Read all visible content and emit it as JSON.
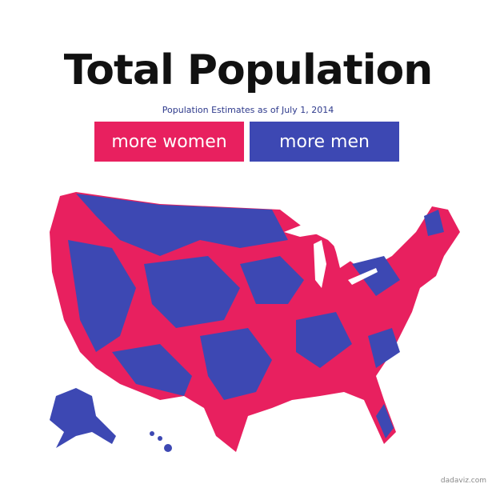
{
  "header": {
    "title": "Total Population",
    "subtitle": "Population Estimates as of July 1, 2014"
  },
  "legend": [
    {
      "label": "more women",
      "color": "#e8205f"
    },
    {
      "label": "more men",
      "color": "#3d48b3"
    }
  ],
  "credit": "dadaviz.com"
}
